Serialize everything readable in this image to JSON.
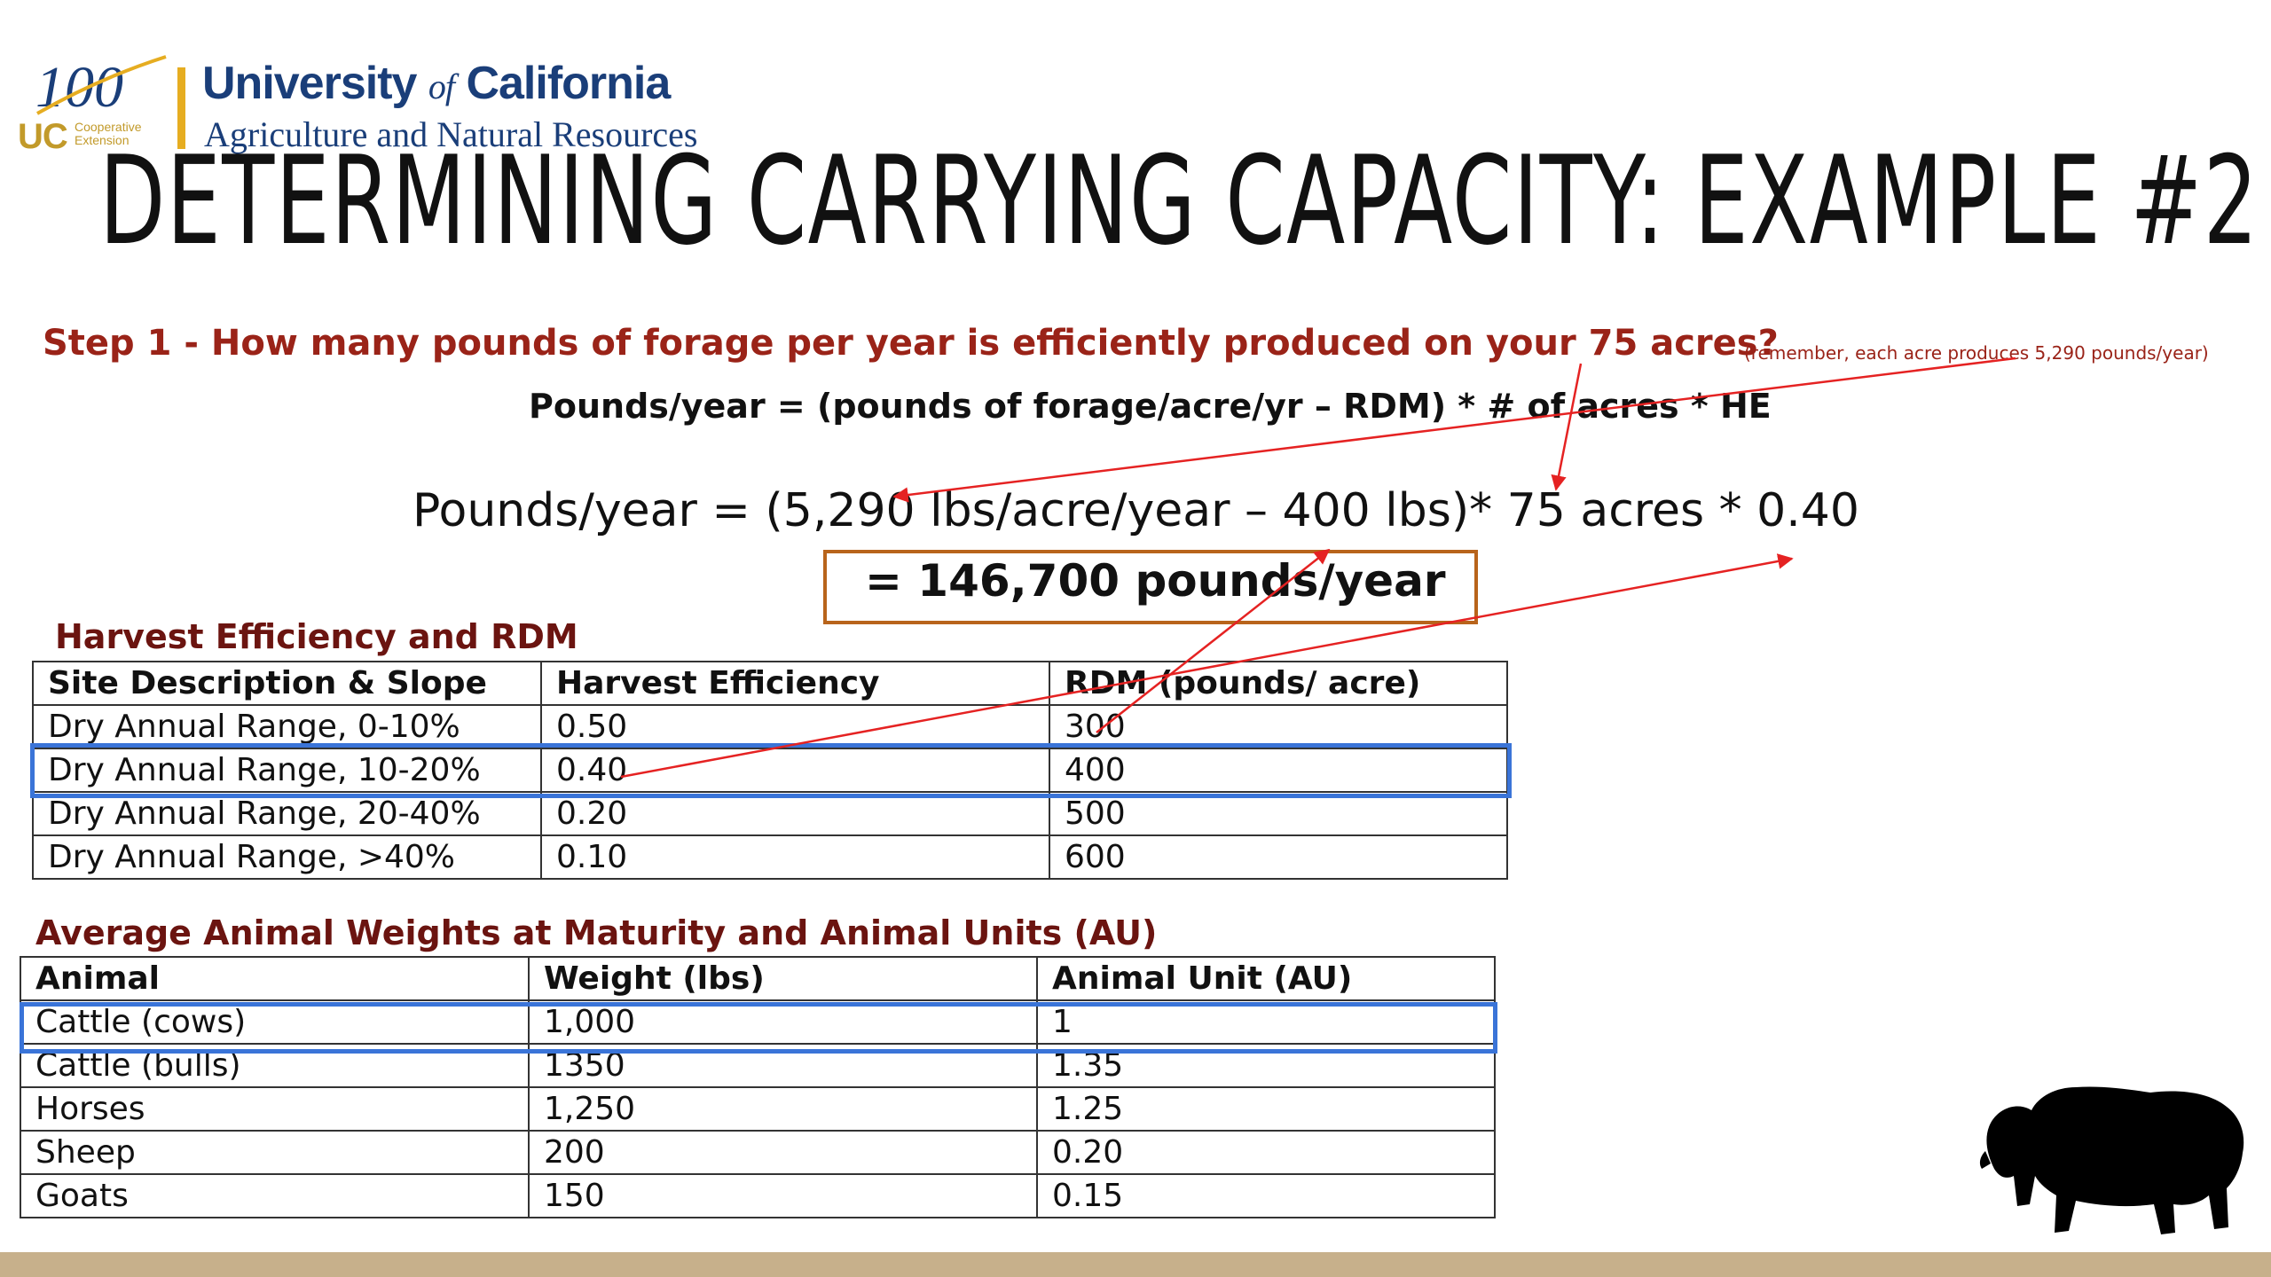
{
  "logo": {
    "anniversary": "100",
    "uc": "UC",
    "coop_line1": "Cooperative",
    "coop_line2": "Extension",
    "line1_a": "University ",
    "line1_of": "of",
    "line1_b": " California",
    "line2": "Agriculture and Natural Resources"
  },
  "title": "DETERMINING CARRYING CAPACITY: EXAMPLE #2",
  "step1": {
    "question": "Step 1 - How many pounds of forage per year is efficiently produced on your 75 acres?",
    "note": "(remember, each acre produces 5,290 pounds/year)",
    "formula": "Pounds/year =  (pounds of forage/acre/yr – RDM) * # of acres * HE",
    "calculation": "Pounds/year =  (5,290 lbs/acre/year – 400 lbs)* 75 acres * 0.40",
    "result": "= 146,700 pounds/year"
  },
  "harvest_table": {
    "heading": "Harvest Efficiency and RDM",
    "headers": [
      "Site Description & Slope",
      "Harvest Efficiency",
      "RDM (pounds/ acre)"
    ],
    "rows": [
      [
        "Dry Annual Range, 0-10%",
        "0.50",
        "300"
      ],
      [
        "Dry Annual Range, 10-20%",
        "0.40",
        "400"
      ],
      [
        "Dry Annual Range, 20-40%",
        "0.20",
        "500"
      ],
      [
        "Dry Annual Range, >40%",
        "0.10",
        "600"
      ]
    ]
  },
  "animal_table": {
    "heading": "Average Animal Weights at Maturity and Animal Units (AU)",
    "headers": [
      "Animal",
      "Weight (lbs)",
      "Animal Unit (AU)"
    ],
    "rows": [
      [
        "Cattle (cows)",
        "1,000",
        "1"
      ],
      [
        "Cattle (bulls)",
        "1350",
        "1.35"
      ],
      [
        "Horses",
        "1,250",
        "1.25"
      ],
      [
        "Sheep",
        "200",
        "0.20"
      ],
      [
        "Goats",
        "150",
        "0.15"
      ]
    ]
  },
  "colors": {
    "step_red": "#9a2318",
    "heading_maroon": "#6b1410",
    "highlight_blue": "#3a74d8",
    "result_border": "#b8641b",
    "arrow_red": "#e52222",
    "logo_blue": "#1a3e79",
    "logo_gold": "#e6ad21",
    "footer_tan": "#c7b08b"
  },
  "icons": {
    "bison": "bison-silhouette-icon"
  }
}
